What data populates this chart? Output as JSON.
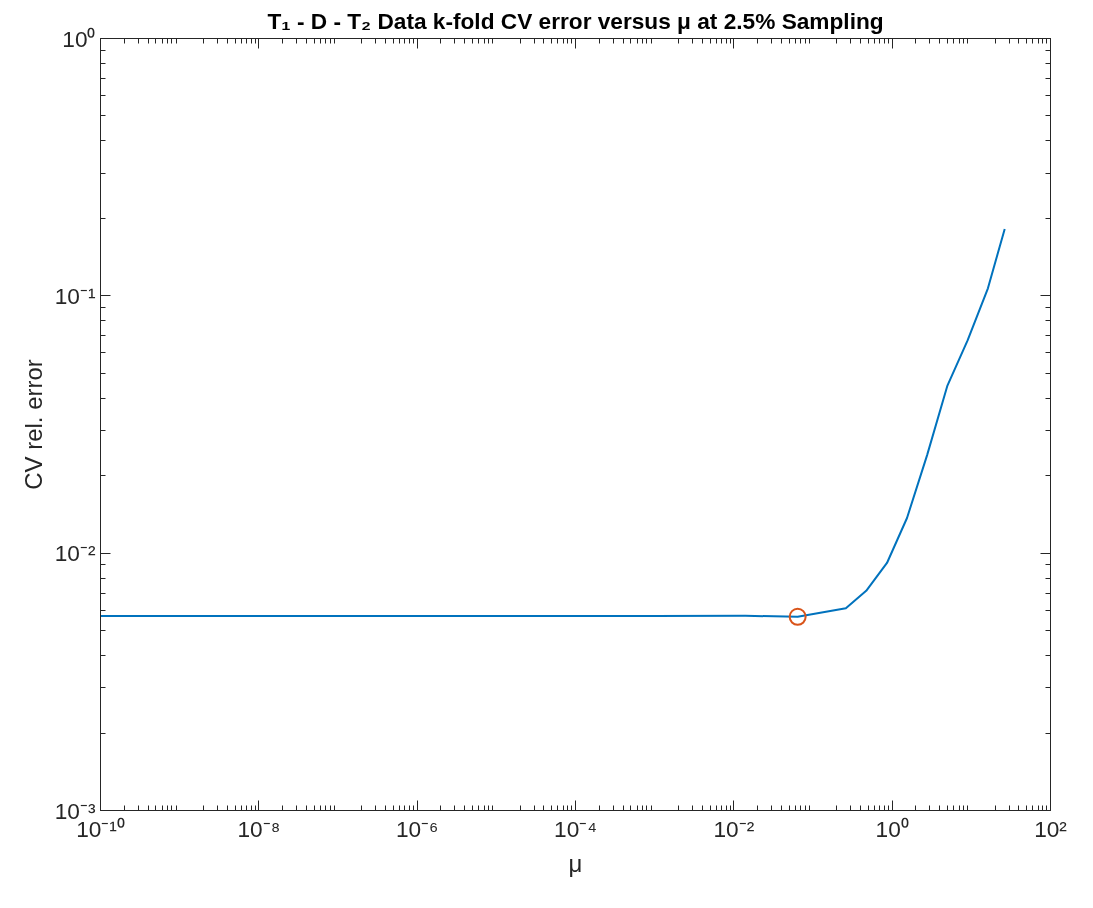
{
  "chart_data": {
    "type": "line",
    "title": "T₁ - D - T₂ Data k-fold CV error versus μ at 2.5% Sampling",
    "xlabel": "μ",
    "ylabel": "CV rel. error",
    "log": "xy",
    "grid": false,
    "xlim": [
      1e-10,
      100
    ],
    "ylim": [
      0.001,
      1
    ],
    "xticks": [
      {
        "value": 1e-10,
        "label": "10⁻¹⁰"
      },
      {
        "value": 1e-08,
        "label": "10⁻⁸"
      },
      {
        "value": 1e-06,
        "label": "10⁻⁶"
      },
      {
        "value": 0.0001,
        "label": "10⁻⁴"
      },
      {
        "value": 0.01,
        "label": "10⁻²"
      },
      {
        "value": 1,
        "label": "10⁰"
      },
      {
        "value": 100,
        "label": "10²"
      }
    ],
    "yticks": [
      {
        "value": 0.001,
        "label": "10⁻³"
      },
      {
        "value": 0.01,
        "label": "10⁻²"
      },
      {
        "value": 0.1,
        "label": "10⁻¹"
      },
      {
        "value": 1,
        "label": "10⁰"
      }
    ],
    "series": [
      {
        "color": "#0072bd",
        "marker": "none",
        "x": [
          1e-10,
          1e-06,
          0.001,
          0.014,
          0.064,
          0.26,
          0.47,
          0.86,
          1.54,
          2.77,
          4.99,
          8.97,
          16.2,
          26.4
        ],
        "values": [
          0.0057,
          0.0057,
          0.0057,
          0.00571,
          0.00566,
          0.00611,
          0.00714,
          0.00916,
          0.0137,
          0.0241,
          0.0448,
          0.0671,
          0.107,
          0.182
        ]
      },
      {
        "type": "scatter",
        "color": "#d95319",
        "marker": "circle",
        "x": [
          0.064
        ],
        "values": [
          0.00566
        ]
      }
    ]
  }
}
